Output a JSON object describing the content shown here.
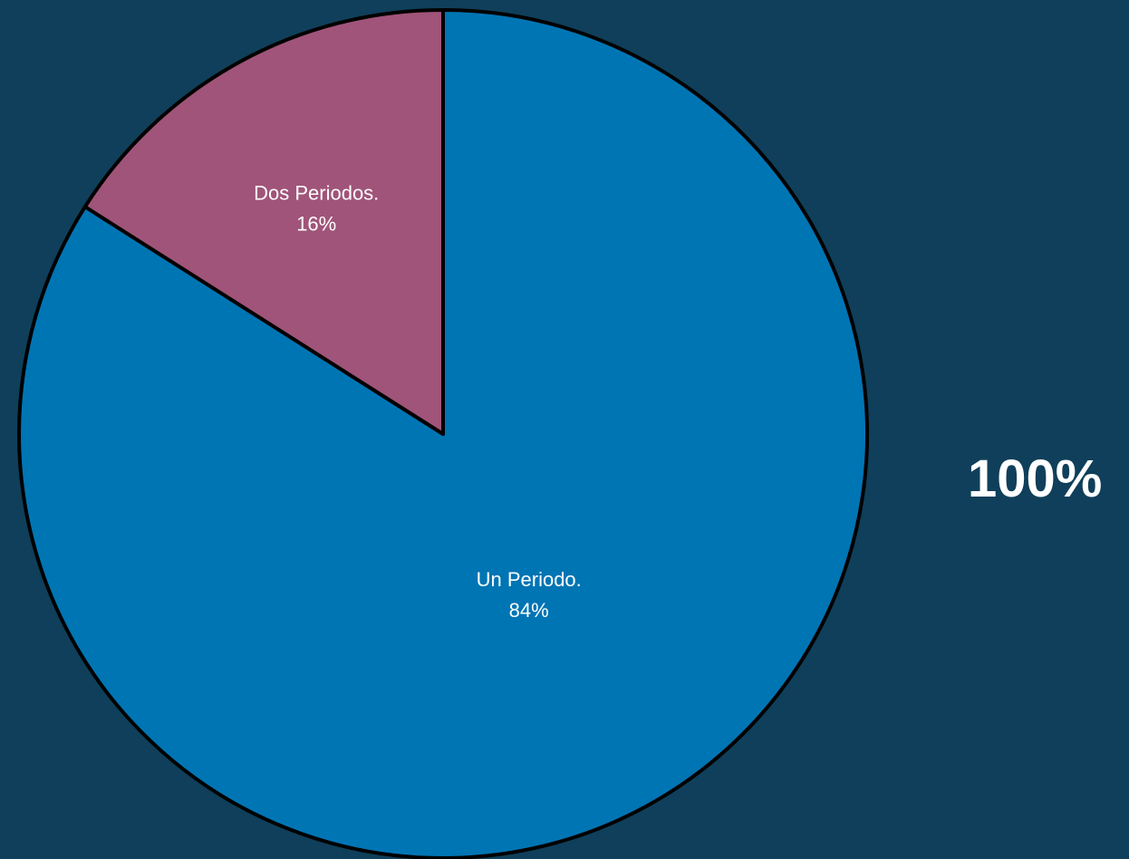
{
  "total_label": "100%",
  "chart_data": {
    "type": "pie",
    "title": "",
    "start_angle_deg": 0,
    "direction": "clockwise",
    "slices": [
      {
        "name": "Un Periodo.",
        "value": 84,
        "percent_label": "84%",
        "color": "#0075b4"
      },
      {
        "name": "Dos Periodos.",
        "value": 16,
        "percent_label": "16%",
        "color": "#a05479"
      }
    ],
    "border_color": "#000000"
  }
}
